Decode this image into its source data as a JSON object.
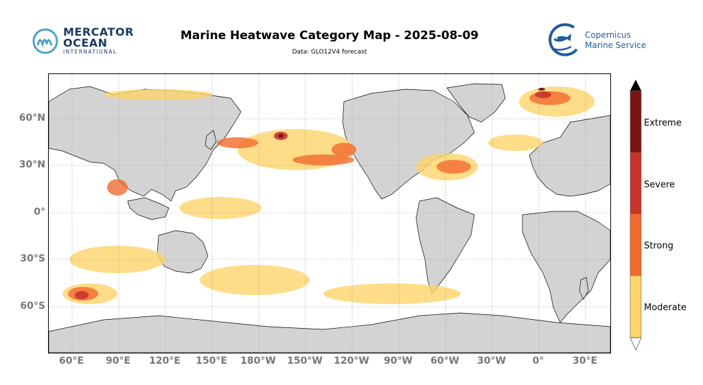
{
  "header": {
    "title": "Marine Heatwave Category Map - 2025-08-09",
    "subtitle": "Data: GLO12V4 forecast"
  },
  "logos": {
    "left": {
      "line1": "MERCATOR",
      "line2": "OCEAN",
      "line3": "INTERNATIONAL",
      "color": "#1b3a63",
      "accent": "#4aa3c8"
    },
    "right": {
      "line1": "Copernicus",
      "line2": "Marine Service",
      "color": "#1f5c99"
    }
  },
  "map": {
    "land_color": "#d3d3d3",
    "ocean_color": "#ffffff",
    "grid": true,
    "lat_labels": [
      "60°N",
      "30°N",
      "0°",
      "30°S",
      "60°S"
    ],
    "lon_labels": [
      "60°E",
      "90°E",
      "120°E",
      "150°E",
      "180°W",
      "150°W",
      "120°W",
      "90°W",
      "60°W",
      "30°W",
      "0°",
      "30°E"
    ]
  },
  "colorbar": {
    "categories": [
      {
        "label": "Moderate",
        "color": "#fdd56a"
      },
      {
        "label": "Strong",
        "color": "#f26a2e"
      },
      {
        "label": "Severe",
        "color": "#c8332a"
      },
      {
        "label": "Extreme",
        "color": "#7a1414"
      }
    ]
  }
}
